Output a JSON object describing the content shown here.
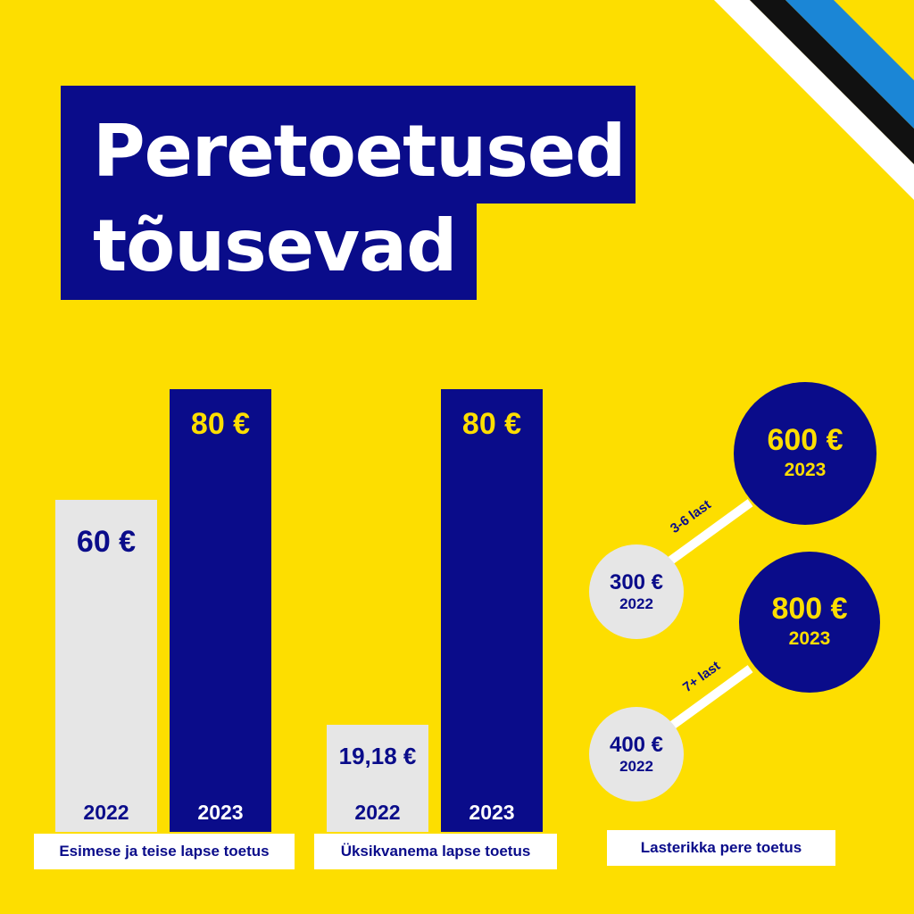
{
  "title": {
    "line1": "Peretoetused",
    "line2": "tõusevad"
  },
  "colors": {
    "background": "#FDDE00",
    "navy": "#0A0C8A",
    "light_grey": "#E6E6E6",
    "white": "#FFFFFF"
  },
  "decoration": {
    "corner_stripes": [
      "#FFFFFF",
      "#111111",
      "#1B86D6"
    ]
  },
  "chart_data": [
    {
      "type": "bar",
      "label": "Esimese ja teise lapse toetus",
      "categories": [
        "2022",
        "2023"
      ],
      "values": [
        60,
        80
      ],
      "value_labels": [
        "60 €",
        "80 €"
      ],
      "unit": "€"
    },
    {
      "type": "bar",
      "label": "Üksikvanema lapse toetus",
      "categories": [
        "2022",
        "2023"
      ],
      "values": [
        19.18,
        80
      ],
      "value_labels": [
        "19,18 €",
        "80 €"
      ],
      "unit": "€"
    },
    {
      "type": "bubble-comparison",
      "label": "Lasterikka pere toetus",
      "groups": [
        {
          "name": "3-6 last",
          "from": {
            "year": "2022",
            "value": 300,
            "label": "300 €"
          },
          "to": {
            "year": "2023",
            "value": 600,
            "label": "600 €"
          }
        },
        {
          "name": "7+ last",
          "from": {
            "year": "2022",
            "value": 400,
            "label": "400 €"
          },
          "to": {
            "year": "2023",
            "value": 800,
            "label": "800 €"
          }
        }
      ]
    }
  ]
}
